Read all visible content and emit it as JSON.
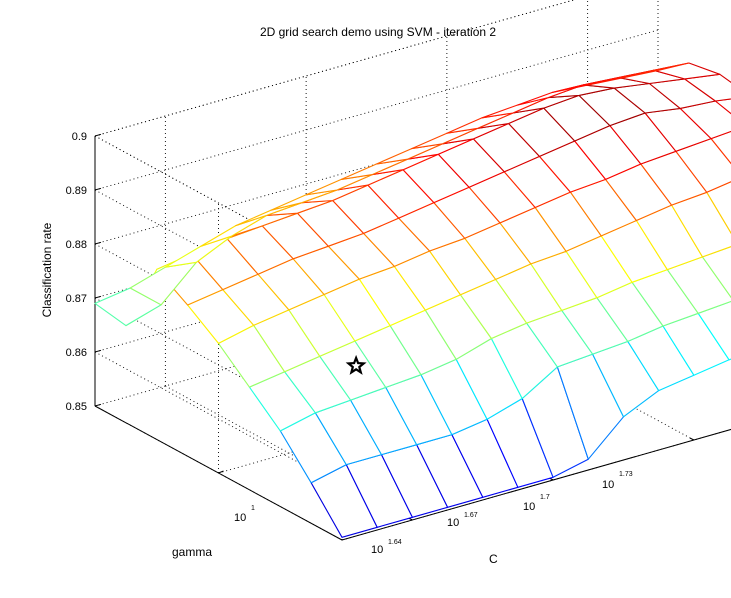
{
  "chart_data": {
    "type": "surface",
    "title": "2D grid search demo using SVM - iteration 2",
    "xlabel": "C",
    "ylabel": "gamma",
    "zlabel": "Classification rate",
    "z_ticks": [
      "0.85",
      "0.86",
      "0.87",
      "0.88",
      "0.89",
      "0.9"
    ],
    "z_tick_values": [
      0.85,
      0.86,
      0.87,
      0.88,
      0.89,
      0.9
    ],
    "zlim": [
      0.85,
      0.9
    ],
    "c_axis": {
      "scale": "log10",
      "tick_base": "10",
      "tick_exponents": [
        "1.64",
        "1.67",
        "1.7",
        "1.73"
      ],
      "range_exponent": [
        1.625,
        1.745
      ]
    },
    "gamma_axis": {
      "scale": "log10",
      "tick_base": "10",
      "tick_exponents": [
        "1"
      ],
      "range_exponent": [
        0.94,
        1.06
      ]
    },
    "grid": true,
    "colormap": "jet",
    "best_marker": {
      "symbol": "pentagram",
      "c_exponent": 1.628,
      "gamma_exponent": 0.94,
      "z": 0.8815
    },
    "surface_z": [
      [
        0.8505,
        0.8505,
        0.8505,
        0.8505,
        0.8505,
        0.8505,
        0.8505,
        0.852,
        0.858,
        0.861,
        0.862,
        0.863,
        0.8635,
        0.8645,
        0.865,
        0.8655,
        0.8655
      ],
      [
        0.8575,
        0.859,
        0.859,
        0.859,
        0.859,
        0.86,
        0.862,
        0.866,
        0.8665,
        0.867,
        0.868,
        0.8685,
        0.869,
        0.8695,
        0.87,
        0.8705,
        0.871
      ],
      [
        0.864,
        0.8655,
        0.866,
        0.8665,
        0.867,
        0.868,
        0.87,
        0.871,
        0.8715,
        0.872,
        0.873,
        0.8735,
        0.874,
        0.8745,
        0.875,
        0.8755,
        0.876
      ],
      [
        0.869,
        0.87,
        0.871,
        0.872,
        0.873,
        0.874,
        0.875,
        0.876,
        0.877,
        0.8775,
        0.8785,
        0.8795,
        0.8805,
        0.881,
        0.882,
        0.8825,
        0.883
      ],
      [
        0.874,
        0.8755,
        0.8765,
        0.8775,
        0.8785,
        0.879,
        0.88,
        0.8805,
        0.8815,
        0.8825,
        0.8835,
        0.884,
        0.885,
        0.8855,
        0.886,
        0.8865,
        0.887
      ],
      [
        0.878,
        0.879,
        0.88,
        0.881,
        0.8815,
        0.882,
        0.883,
        0.884,
        0.885,
        0.886,
        0.887,
        0.888,
        0.889,
        0.8895,
        0.8885,
        0.888,
        0.887
      ],
      [
        0.8815,
        0.8825,
        0.8835,
        0.884,
        0.8845,
        0.885,
        0.886,
        0.887,
        0.888,
        0.889,
        0.89,
        0.891,
        0.8915,
        0.891,
        0.89,
        0.889,
        0.888
      ],
      [
        0.868,
        0.87,
        0.876,
        0.879,
        0.881,
        0.8815,
        0.882,
        0.883,
        0.884,
        0.885,
        0.886,
        0.887,
        0.888,
        0.8885,
        0.888,
        0.8875,
        0.887
      ],
      [
        0.869,
        0.87,
        0.872,
        0.874,
        0.876,
        0.877,
        0.878,
        0.879,
        0.88,
        0.881,
        0.882,
        0.883,
        0.8835,
        0.884,
        0.8835,
        0.883,
        0.8825
      ]
    ]
  }
}
